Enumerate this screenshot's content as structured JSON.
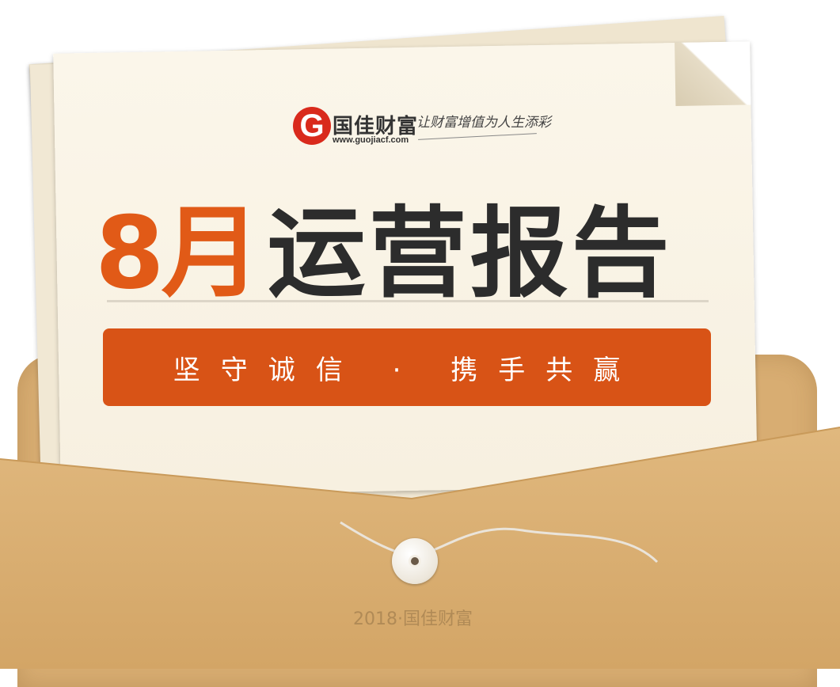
{
  "brand": {
    "logo_letter": "G",
    "name": "国佳财富",
    "url": "www.guojiacf.com",
    "slogan": "让财富增值为人生添彩"
  },
  "title": {
    "month": "8月",
    "main": "运营报告"
  },
  "banner": {
    "text": "坚守诚信 · 携手共赢"
  },
  "envelope": {
    "mark": "2018·国佳财富"
  },
  "colors": {
    "accent": "#d85316",
    "title_dark": "#2c2c2c",
    "logo_red": "#d92a1c",
    "envelope": "#d8ad72"
  }
}
